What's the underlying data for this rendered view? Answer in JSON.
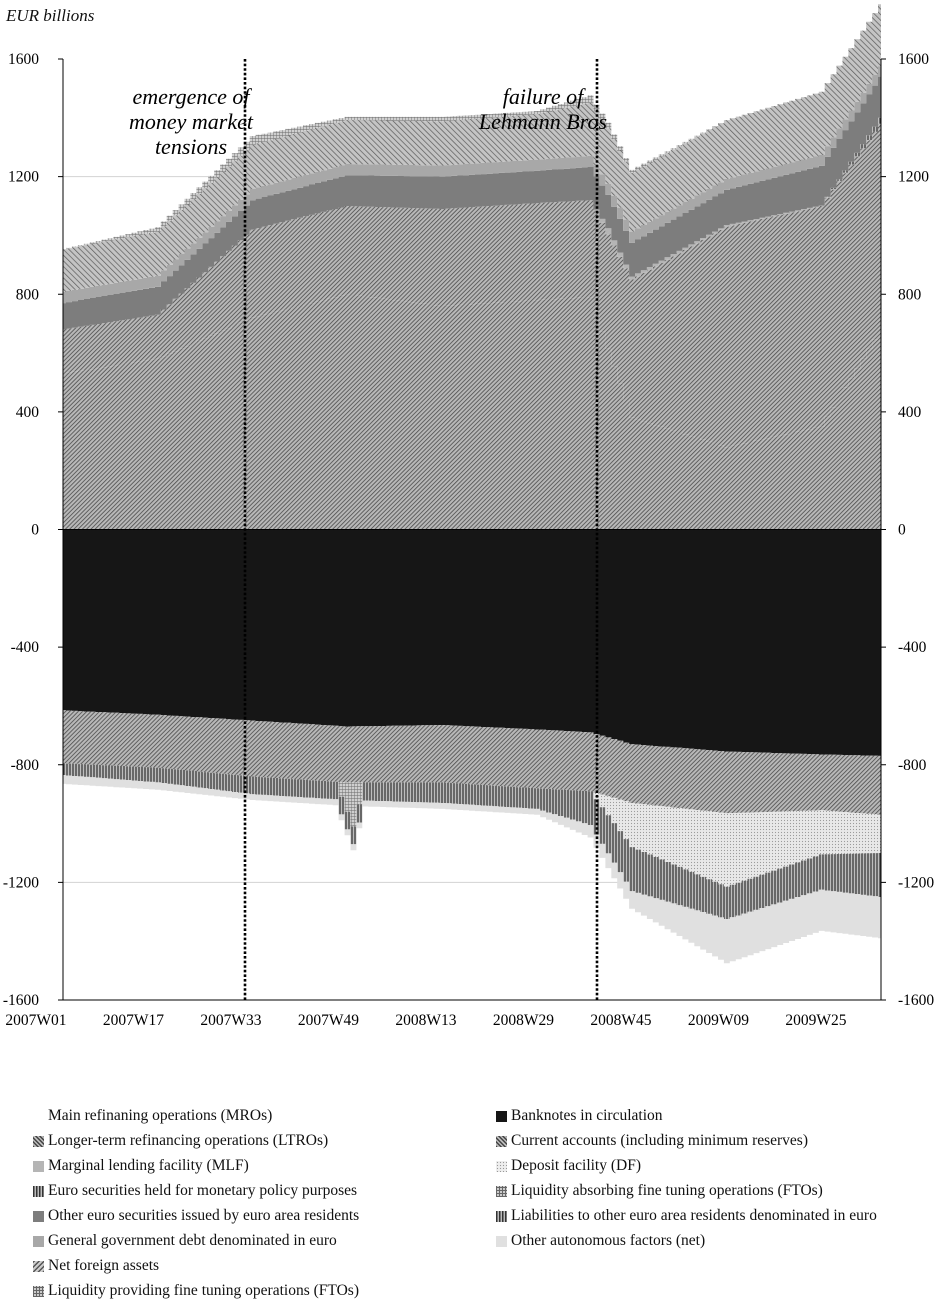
{
  "chart_data": {
    "type": "area",
    "ylabel": "EUR billions",
    "ylim": [
      -1600,
      1600
    ],
    "yticks": [
      1600,
      1200,
      800,
      400,
      0,
      -400,
      -800,
      -1200,
      -1600
    ],
    "xtick_labels": [
      "2007W01",
      "2007W17",
      "2007W33",
      "2007W49",
      "2008W13",
      "2008W29",
      "2008W45",
      "2009W09",
      "2009W25"
    ],
    "annotations": [
      {
        "week": "2007W33",
        "lines": [
          "emergence of",
          "money market",
          "tensions"
        ]
      },
      {
        "week": "2008W37",
        "lines": [
          "failure of",
          "Lehmann Bros"
        ]
      }
    ],
    "series_assets": [
      {
        "name": "Main refinaning operations (MROs)",
        "color": "#9a9a9a",
        "pattern": "diag-dense",
        "points": [
          [
            "2007W01",
            530
          ],
          [
            "2007W17",
            580
          ],
          [
            "2007W33",
            720
          ],
          [
            "2007W49",
            800
          ],
          [
            "2008W13",
            760
          ],
          [
            "2008W29",
            780
          ],
          [
            "2008W38",
            790
          ],
          [
            "2008W45",
            380
          ],
          [
            "2009W09",
            280
          ],
          [
            "2009W25",
            350
          ],
          [
            "2009W35",
            680
          ]
        ]
      },
      {
        "name": "Longer-term refinancing operations (LTROs)",
        "color": "#8a8a8a",
        "pattern": "diag-dense",
        "points": [
          [
            "2007W01",
            150
          ],
          [
            "2007W17",
            150
          ],
          [
            "2007W33",
            300
          ],
          [
            "2007W49",
            300
          ],
          [
            "2008W13",
            330
          ],
          [
            "2008W29",
            330
          ],
          [
            "2008W38",
            330
          ],
          [
            "2008W45",
            470
          ],
          [
            "2009W09",
            750
          ],
          [
            "2009W25",
            750
          ],
          [
            "2009W35",
            700
          ]
        ]
      },
      {
        "name": "Marginal lending facility (MLF)",
        "color": "#b5b5b5",
        "pattern": "solid",
        "points": [
          [
            "2007W01",
            0
          ],
          [
            "2007W33",
            0
          ],
          [
            "2008W38",
            0
          ],
          [
            "2008W41",
            20
          ],
          [
            "2008W45",
            10
          ],
          [
            "2009W09",
            5
          ],
          [
            "2009W35",
            0
          ]
        ]
      },
      {
        "name": "Euro securities held for monetary policy purposes",
        "color": "#6f6f6f",
        "pattern": "vert",
        "points": [
          [
            "2007W01",
            0
          ],
          [
            "2009W25",
            0
          ],
          [
            "2009W35",
            20
          ]
        ]
      },
      {
        "name": "Other euro securities issued by euro area residents",
        "color": "#7d7d7d",
        "pattern": "solid",
        "points": [
          [
            "2007W01",
            90
          ],
          [
            "2007W17",
            95
          ],
          [
            "2007W33",
            100
          ],
          [
            "2007W49",
            105
          ],
          [
            "2008W13",
            110
          ],
          [
            "2008W29",
            110
          ],
          [
            "2008W45",
            115
          ],
          [
            "2009W09",
            120
          ],
          [
            "2009W25",
            135
          ],
          [
            "2009W35",
            140
          ]
        ]
      },
      {
        "name": "General government debt denominated in euro",
        "color": "#a8a8a8",
        "pattern": "solid",
        "points": [
          [
            "2007W01",
            38
          ],
          [
            "2008W45",
            38
          ],
          [
            "2009W35",
            36
          ]
        ]
      },
      {
        "name": "Net foreign assets",
        "color": "#9c9c9c",
        "pattern": "diag",
        "points": [
          [
            "2007W01",
            145
          ],
          [
            "2007W17",
            150
          ],
          [
            "2007W33",
            150
          ],
          [
            "2007W49",
            150
          ],
          [
            "2008W13",
            150
          ],
          [
            "2008W29",
            155
          ],
          [
            "2008W45",
            200
          ],
          [
            "2009W09",
            200
          ],
          [
            "2009W25",
            215
          ],
          [
            "2009W35",
            210
          ]
        ]
      },
      {
        "name": "Liquidity providing fine tuning operations (FTOs)",
        "color": "#d0d0d0",
        "pattern": "grid",
        "points": [
          [
            "2007W01",
            0
          ],
          [
            "2007W33",
            30
          ],
          [
            "2007W49",
            10
          ],
          [
            "2008W13",
            15
          ],
          [
            "2008W29",
            10
          ],
          [
            "2008W38",
            25
          ],
          [
            "2008W45",
            10
          ],
          [
            "2009W09",
            0
          ],
          [
            "2009W35",
            0
          ]
        ]
      }
    ],
    "series_liabilities": [
      {
        "name": "Banknotes in circulation",
        "color": "#161616",
        "pattern": "solid",
        "points": [
          [
            "2007W01",
            -615
          ],
          [
            "2007W17",
            -630
          ],
          [
            "2007W33",
            -650
          ],
          [
            "2007W49",
            -670
          ],
          [
            "2008W13",
            -665
          ],
          [
            "2008W29",
            -680
          ],
          [
            "2008W38",
            -690
          ],
          [
            "2008W45",
            -730
          ],
          [
            "2009W09",
            -755
          ],
          [
            "2009W25",
            -765
          ],
          [
            "2009W35",
            -770
          ]
        ]
      },
      {
        "name": "Current accounts (including minimum reserves)",
        "color": "#7a7a7a",
        "pattern": "diag-dense",
        "points": [
          [
            "2007W01",
            -180
          ],
          [
            "2007W17",
            -180
          ],
          [
            "2007W33",
            -190
          ],
          [
            "2007W49",
            -190
          ],
          [
            "2008W13",
            -195
          ],
          [
            "2008W29",
            -200
          ],
          [
            "2008W38",
            -200
          ],
          [
            "2008W45",
            -200
          ],
          [
            "2009W09",
            -210
          ],
          [
            "2009W25",
            -190
          ],
          [
            "2009W35",
            -200
          ]
        ]
      },
      {
        "name": "Deposit facility (DF)",
        "color": "#d4d4d4",
        "pattern": "dots",
        "points": [
          [
            "2007W01",
            0
          ],
          [
            "2007W33",
            0
          ],
          [
            "2008W38",
            0
          ],
          [
            "2008W45",
            -150
          ],
          [
            "2009W09",
            -250
          ],
          [
            "2009W25",
            -150
          ],
          [
            "2009W35",
            -130
          ]
        ]
      },
      {
        "name": "Liquidity absorbing fine tuning operations (FTOs)",
        "color": "#b4b4b4",
        "pattern": "grid",
        "points": [
          [
            "2007W01",
            0
          ],
          [
            "2007W47",
            0
          ],
          [
            "2007W50",
            -150
          ],
          [
            "2007W52",
            0
          ],
          [
            "2009W35",
            0
          ]
        ]
      },
      {
        "name": "Liabilities to other euro area residents denominated in euro",
        "color": "#8c8c8c",
        "pattern": "vert",
        "points": [
          [
            "2007W01",
            -40
          ],
          [
            "2007W33",
            -60
          ],
          [
            "2007W49",
            -60
          ],
          [
            "2008W13",
            -70
          ],
          [
            "2008W29",
            -70
          ],
          [
            "2008W45",
            -150
          ],
          [
            "2009W09",
            -110
          ],
          [
            "2009W25",
            -120
          ],
          [
            "2009W35",
            -150
          ]
        ]
      },
      {
        "name": "Other autonomous factors (net)",
        "color": "#e0e0e0",
        "pattern": "solid",
        "points": [
          [
            "2007W01",
            -30
          ],
          [
            "2007W33",
            -20
          ],
          [
            "2008W29",
            -20
          ],
          [
            "2008W45",
            -60
          ],
          [
            "2009W09",
            -150
          ],
          [
            "2009W25",
            -140
          ],
          [
            "2009W35",
            -140
          ]
        ]
      }
    ]
  }
}
